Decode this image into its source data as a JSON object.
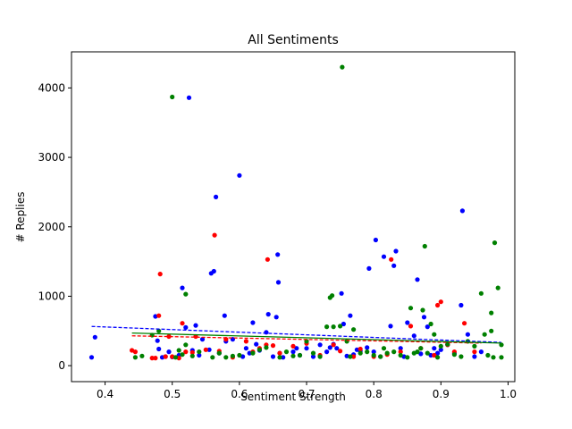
{
  "chart_data": {
    "type": "scatter",
    "title": "All Sentiments",
    "xlabel": "Sentiment Strength",
    "ylabel": "# Replies",
    "xlim": [
      0.35,
      1.01
    ],
    "ylim": [
      -230,
      4520
    ],
    "xticks": [
      "0.4",
      "0.5",
      "0.6",
      "0.7",
      "0.8",
      "0.9",
      "1.0"
    ],
    "yticks": [
      "0",
      "1000",
      "2000",
      "3000",
      "4000"
    ],
    "grid": false,
    "legend": "none",
    "series": [
      {
        "color": "#0000ff",
        "points": [
          [
            0.38,
            120
          ],
          [
            0.385,
            410
          ],
          [
            0.475,
            710
          ],
          [
            0.478,
            360
          ],
          [
            0.48,
            240
          ],
          [
            0.485,
            120
          ],
          [
            0.49,
            130
          ],
          [
            0.495,
            200
          ],
          [
            0.5,
            125
          ],
          [
            0.51,
            150
          ],
          [
            0.515,
            1120
          ],
          [
            0.52,
            550
          ],
          [
            0.525,
            3860
          ],
          [
            0.53,
            220
          ],
          [
            0.535,
            580
          ],
          [
            0.54,
            150
          ],
          [
            0.545,
            380
          ],
          [
            0.555,
            230
          ],
          [
            0.558,
            1330
          ],
          [
            0.562,
            1360
          ],
          [
            0.565,
            2430
          ],
          [
            0.57,
            180
          ],
          [
            0.578,
            720
          ],
          [
            0.58,
            350
          ],
          [
            0.59,
            380
          ],
          [
            0.6,
            2740
          ],
          [
            0.605,
            130
          ],
          [
            0.61,
            250
          ],
          [
            0.615,
            180
          ],
          [
            0.62,
            620
          ],
          [
            0.625,
            310
          ],
          [
            0.63,
            220
          ],
          [
            0.64,
            480
          ],
          [
            0.643,
            740
          ],
          [
            0.65,
            130
          ],
          [
            0.655,
            700
          ],
          [
            0.657,
            1600
          ],
          [
            0.658,
            1200
          ],
          [
            0.66,
            180
          ],
          [
            0.665,
            120
          ],
          [
            0.68,
            200
          ],
          [
            0.685,
            250
          ],
          [
            0.69,
            150
          ],
          [
            0.7,
            250
          ],
          [
            0.71,
            130
          ],
          [
            0.72,
            300
          ],
          [
            0.73,
            200
          ],
          [
            0.735,
            260
          ],
          [
            0.74,
            310
          ],
          [
            0.745,
            250
          ],
          [
            0.752,
            1040
          ],
          [
            0.755,
            600
          ],
          [
            0.76,
            140
          ],
          [
            0.765,
            720
          ],
          [
            0.77,
            160
          ],
          [
            0.775,
            230
          ],
          [
            0.78,
            210
          ],
          [
            0.79,
            260
          ],
          [
            0.793,
            1400
          ],
          [
            0.8,
            200
          ],
          [
            0.803,
            1810
          ],
          [
            0.81,
            130
          ],
          [
            0.815,
            1570
          ],
          [
            0.825,
            570
          ],
          [
            0.83,
            1440
          ],
          [
            0.833,
            1650
          ],
          [
            0.84,
            250
          ],
          [
            0.845,
            130
          ],
          [
            0.85,
            620
          ],
          [
            0.86,
            430
          ],
          [
            0.865,
            1240
          ],
          [
            0.87,
            170
          ],
          [
            0.875,
            700
          ],
          [
            0.88,
            560
          ],
          [
            0.885,
            150
          ],
          [
            0.89,
            250
          ],
          [
            0.895,
            180
          ],
          [
            0.9,
            230
          ],
          [
            0.91,
            300
          ],
          [
            0.92,
            180
          ],
          [
            0.93,
            870
          ],
          [
            0.932,
            2230
          ],
          [
            0.94,
            450
          ],
          [
            0.95,
            130
          ],
          [
            0.96,
            200
          ]
        ],
        "trend": [
          [
            0.38,
            565
          ],
          [
            0.99,
            335
          ]
        ]
      },
      {
        "color": "#ff0000",
        "points": [
          [
            0.44,
            220
          ],
          [
            0.445,
            200
          ],
          [
            0.47,
            110
          ],
          [
            0.475,
            110
          ],
          [
            0.48,
            720
          ],
          [
            0.482,
            1320
          ],
          [
            0.49,
            130
          ],
          [
            0.495,
            420
          ],
          [
            0.5,
            130
          ],
          [
            0.51,
            110
          ],
          [
            0.515,
            610
          ],
          [
            0.52,
            200
          ],
          [
            0.53,
            190
          ],
          [
            0.535,
            420
          ],
          [
            0.55,
            230
          ],
          [
            0.563,
            1880
          ],
          [
            0.57,
            210
          ],
          [
            0.58,
            380
          ],
          [
            0.59,
            120
          ],
          [
            0.61,
            350
          ],
          [
            0.62,
            200
          ],
          [
            0.63,
            250
          ],
          [
            0.64,
            300
          ],
          [
            0.642,
            1530
          ],
          [
            0.65,
            290
          ],
          [
            0.66,
            180
          ],
          [
            0.68,
            280
          ],
          [
            0.7,
            320
          ],
          [
            0.72,
            150
          ],
          [
            0.74,
            300
          ],
          [
            0.75,
            210
          ],
          [
            0.77,
            130
          ],
          [
            0.78,
            240
          ],
          [
            0.8,
            130
          ],
          [
            0.82,
            160
          ],
          [
            0.826,
            1530
          ],
          [
            0.84,
            200
          ],
          [
            0.855,
            570
          ],
          [
            0.87,
            250
          ],
          [
            0.89,
            150
          ],
          [
            0.895,
            870
          ],
          [
            0.9,
            920
          ],
          [
            0.91,
            300
          ],
          [
            0.92,
            200
          ],
          [
            0.935,
            610
          ],
          [
            0.95,
            200
          ]
        ],
        "trend": [
          [
            0.44,
            430
          ],
          [
            0.96,
            325
          ]
        ]
      },
      {
        "color": "#008000",
        "points": [
          [
            0.445,
            120
          ],
          [
            0.455,
            140
          ],
          [
            0.47,
            440
          ],
          [
            0.48,
            500
          ],
          [
            0.5,
            3870
          ],
          [
            0.505,
            120
          ],
          [
            0.51,
            220
          ],
          [
            0.515,
            160
          ],
          [
            0.52,
            1030
          ],
          [
            0.52,
            300
          ],
          [
            0.53,
            140
          ],
          [
            0.54,
            200
          ],
          [
            0.56,
            120
          ],
          [
            0.57,
            180
          ],
          [
            0.58,
            120
          ],
          [
            0.59,
            140
          ],
          [
            0.6,
            150
          ],
          [
            0.62,
            180
          ],
          [
            0.63,
            230
          ],
          [
            0.64,
            260
          ],
          [
            0.66,
            120
          ],
          [
            0.67,
            200
          ],
          [
            0.68,
            140
          ],
          [
            0.69,
            150
          ],
          [
            0.7,
            350
          ],
          [
            0.71,
            180
          ],
          [
            0.72,
            130
          ],
          [
            0.73,
            560
          ],
          [
            0.735,
            980
          ],
          [
            0.738,
            1010
          ],
          [
            0.74,
            560
          ],
          [
            0.75,
            570
          ],
          [
            0.753,
            4300
          ],
          [
            0.76,
            350
          ],
          [
            0.765,
            130
          ],
          [
            0.77,
            520
          ],
          [
            0.78,
            180
          ],
          [
            0.79,
            200
          ],
          [
            0.8,
            150
          ],
          [
            0.81,
            130
          ],
          [
            0.815,
            250
          ],
          [
            0.82,
            180
          ],
          [
            0.83,
            200
          ],
          [
            0.84,
            150
          ],
          [
            0.85,
            120
          ],
          [
            0.855,
            830
          ],
          [
            0.86,
            180
          ],
          [
            0.865,
            200
          ],
          [
            0.87,
            250
          ],
          [
            0.873,
            800
          ],
          [
            0.876,
            1720
          ],
          [
            0.88,
            180
          ],
          [
            0.885,
            600
          ],
          [
            0.89,
            450
          ],
          [
            0.895,
            120
          ],
          [
            0.9,
            280
          ],
          [
            0.91,
            310
          ],
          [
            0.92,
            160
          ],
          [
            0.93,
            130
          ],
          [
            0.94,
            350
          ],
          [
            0.95,
            280
          ],
          [
            0.96,
            1040
          ],
          [
            0.965,
            450
          ],
          [
            0.97,
            150
          ],
          [
            0.975,
            500
          ],
          [
            0.975,
            760
          ],
          [
            0.978,
            120
          ],
          [
            0.98,
            1770
          ],
          [
            0.985,
            1120
          ],
          [
            0.99,
            300
          ],
          [
            0.99,
            120
          ]
        ],
        "trend": [
          [
            0.44,
            470
          ],
          [
            0.99,
            325
          ]
        ]
      }
    ]
  }
}
